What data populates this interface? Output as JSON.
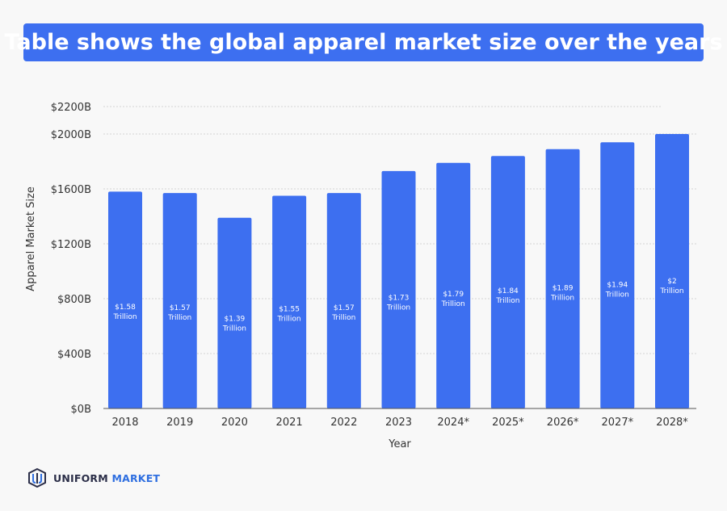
{
  "colors": {
    "bar": "#3d6ff0",
    "banner": "#3d6ff0",
    "background": "#f8f8f8",
    "logo_accent": "#2f6fe0"
  },
  "chart_data": {
    "type": "bar",
    "title": "Table shows the global apparel market size over the years",
    "xlabel": "Year",
    "ylabel": "Apparel Market Size",
    "ylim": [
      0,
      2200
    ],
    "yticks": [
      0,
      400,
      800,
      1200,
      1600,
      2000,
      2200
    ],
    "ytick_labels": [
      "$0B",
      "$400B",
      "$800B",
      "$1200B",
      "$1600B",
      "$2000B",
      "$2200B"
    ],
    "grid": true,
    "categories": [
      "2018",
      "2019",
      "2020",
      "2021",
      "2022",
      "2023",
      "2024*",
      "2025*",
      "2026*",
      "2027*",
      "2028*"
    ],
    "values": [
      1580,
      1570,
      1390,
      1550,
      1570,
      1730,
      1790,
      1840,
      1890,
      1940,
      2000
    ],
    "data_labels": [
      [
        "$1.58",
        "Trillion"
      ],
      [
        "$1.57",
        "Trillion"
      ],
      [
        "$1.39",
        "Trillion"
      ],
      [
        "$1.55",
        "Trillion"
      ],
      [
        "$1.57",
        "Trillion"
      ],
      [
        "$1.73",
        "Trillion"
      ],
      [
        "$1.79",
        "Trillion"
      ],
      [
        "$1.84",
        "Trillion"
      ],
      [
        "$1.89",
        "Trillion"
      ],
      [
        "$1.94",
        "Trillion"
      ],
      [
        "$2",
        "Trillion"
      ]
    ]
  },
  "logo": {
    "word1": "UNIFORM",
    "word2": "MARKET"
  }
}
